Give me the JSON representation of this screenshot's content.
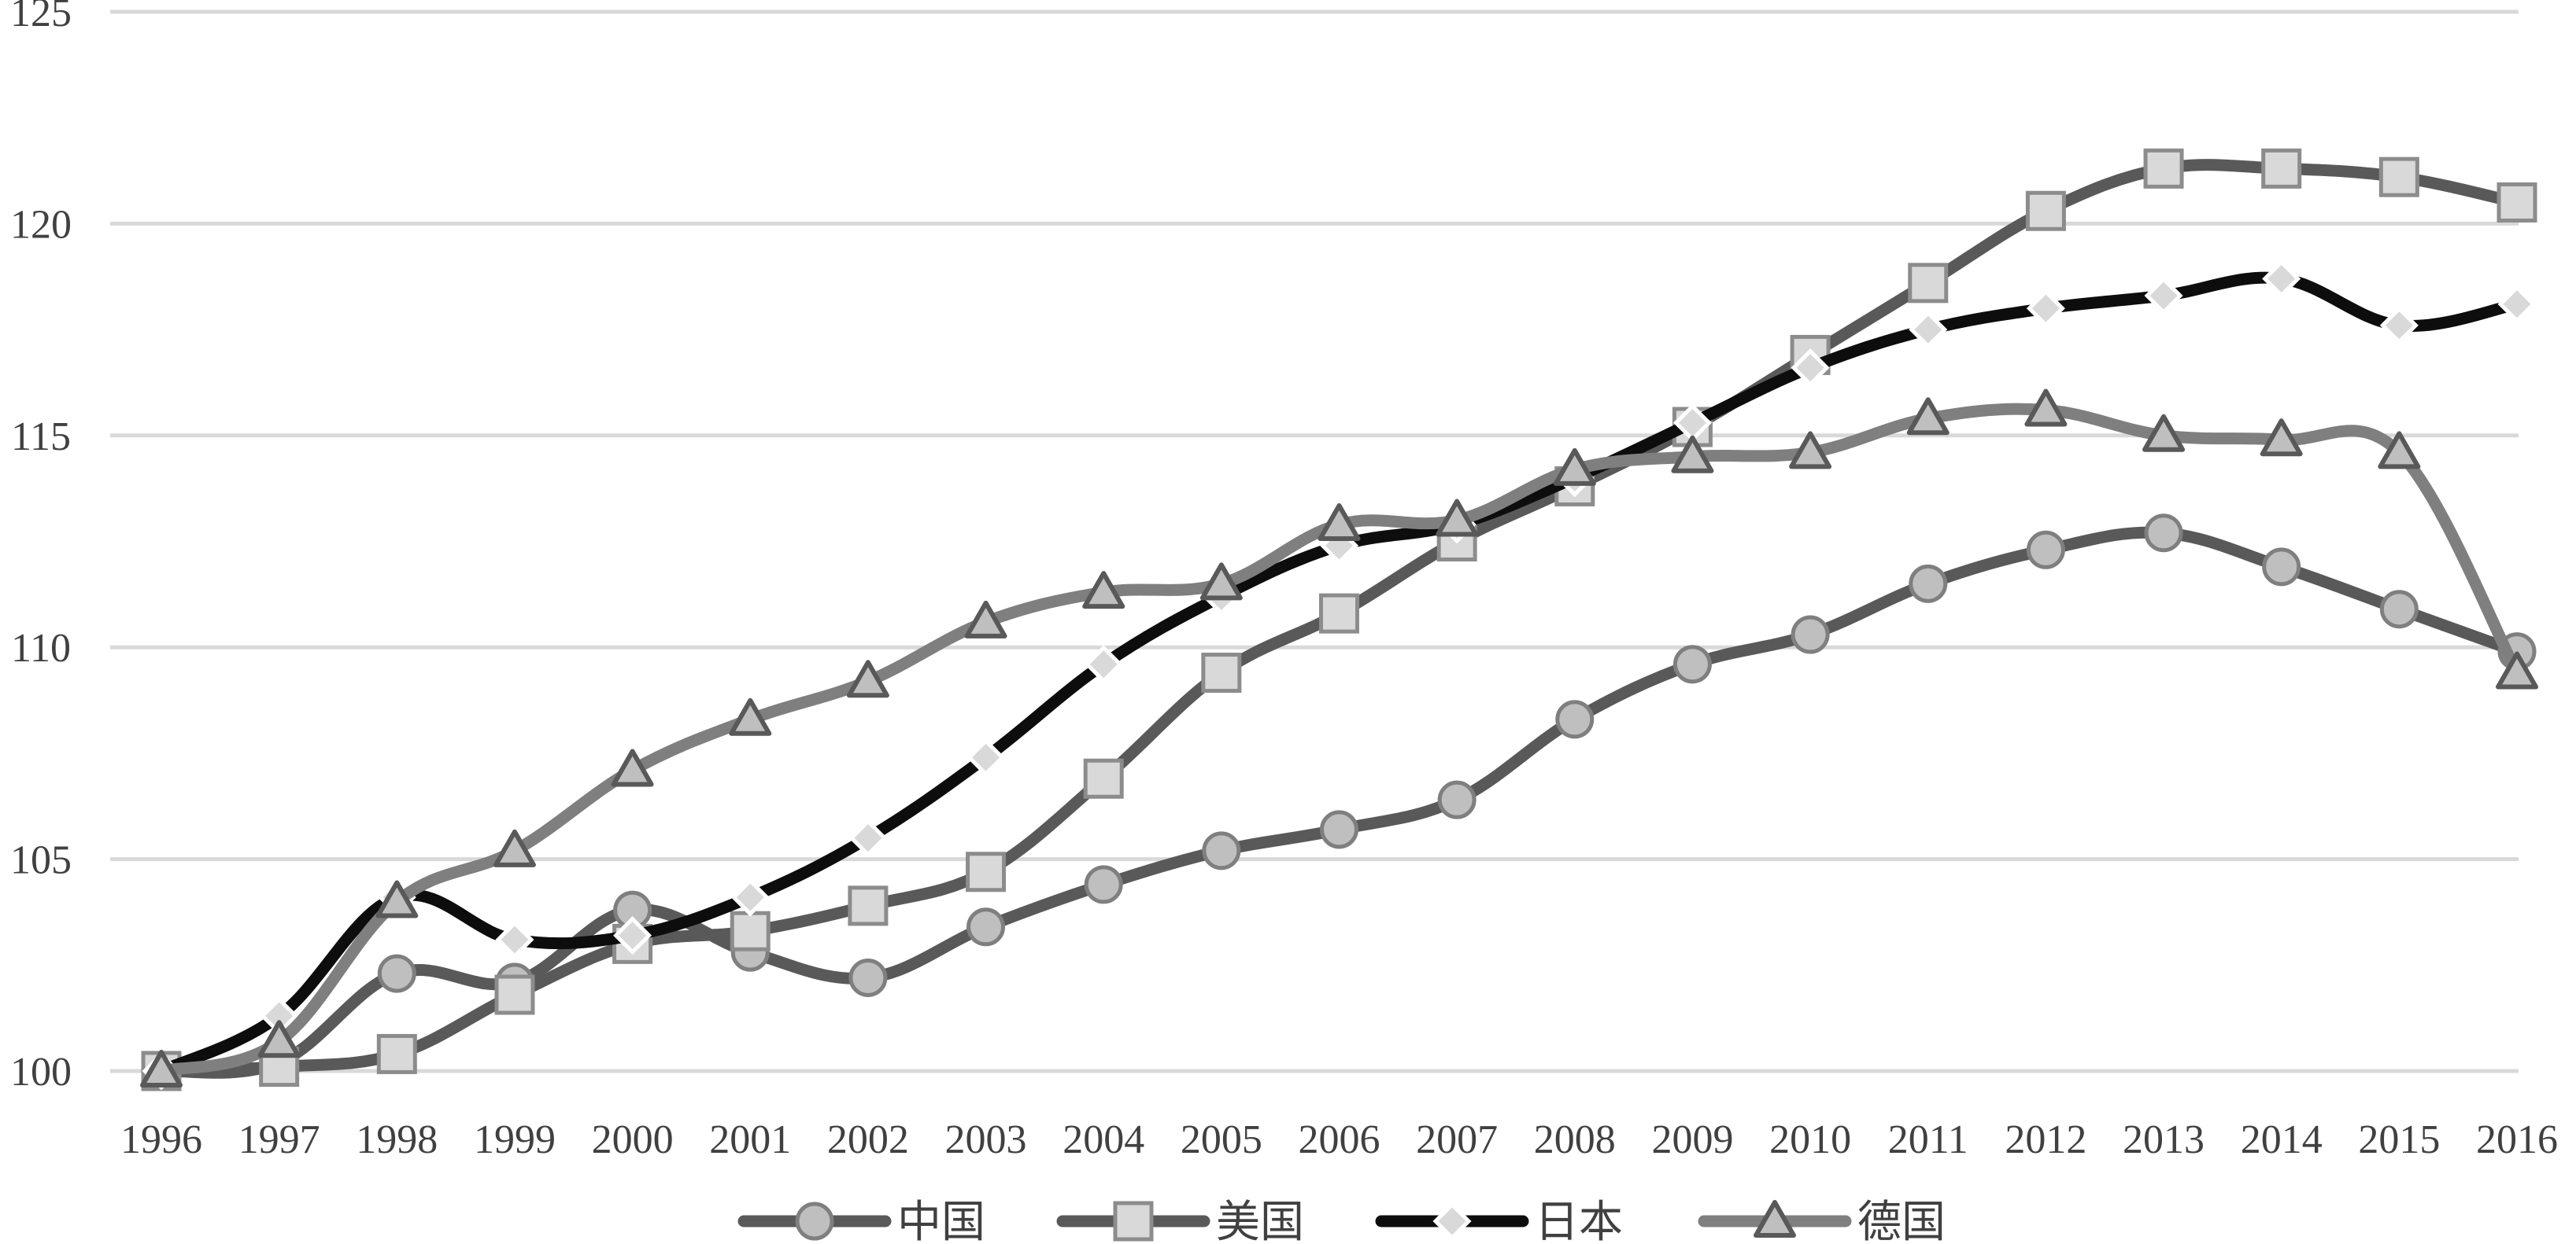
{
  "chart_data": {
    "type": "line",
    "title": "",
    "xlabel": "",
    "ylabel": "",
    "ylim": [
      100,
      125
    ],
    "yticks": [
      100,
      105,
      110,
      115,
      120,
      125
    ],
    "grid": true,
    "legend_position": "bottom",
    "categories": [
      "1996",
      "1997",
      "1998",
      "1999",
      "2000",
      "2001",
      "2002",
      "2003",
      "2004",
      "2005",
      "2006",
      "2007",
      "2008",
      "2009",
      "2010",
      "2011",
      "2012",
      "2013",
      "2014",
      "2015",
      "2016"
    ],
    "series": [
      {
        "name": "中国",
        "marker": "circle",
        "line_color": "#595959",
        "marker_fill": "#bfbfbf",
        "marker_stroke": "#7f7f7f",
        "values": [
          100.0,
          100.2,
          102.3,
          102.1,
          103.8,
          102.8,
          102.2,
          103.4,
          104.4,
          105.2,
          105.7,
          106.4,
          108.3,
          109.6,
          110.3,
          111.5,
          112.3,
          112.7,
          111.9,
          110.9,
          109.9
        ]
      },
      {
        "name": "美国",
        "marker": "square",
        "line_color": "#595959",
        "marker_fill": "#d9d9d9",
        "marker_stroke": "#8c8c8c",
        "values": [
          100.0,
          100.1,
          100.4,
          101.8,
          103.0,
          103.3,
          103.9,
          104.7,
          106.9,
          109.4,
          110.8,
          112.5,
          113.8,
          115.2,
          116.9,
          118.6,
          120.3,
          121.3,
          121.3,
          121.1,
          120.5
        ]
      },
      {
        "name": "日本",
        "marker": "diamond",
        "line_color": "#0d0d0d",
        "marker_fill": "#d9d9d9",
        "marker_stroke": "#ffffff",
        "values": [
          100.0,
          101.3,
          104.1,
          103.1,
          103.2,
          104.1,
          105.5,
          107.4,
          109.6,
          111.2,
          112.4,
          112.9,
          114.0,
          115.3,
          116.6,
          117.5,
          118.0,
          118.3,
          118.7,
          117.6,
          118.1
        ]
      },
      {
        "name": "德国",
        "marker": "triangle",
        "line_color": "#7f7f7f",
        "marker_fill": "#bfbfbf",
        "marker_stroke": "#595959",
        "values": [
          100.0,
          100.7,
          104.0,
          105.2,
          107.1,
          108.3,
          109.2,
          110.6,
          111.3,
          111.5,
          112.9,
          113.0,
          114.2,
          114.5,
          114.6,
          115.4,
          115.6,
          115.0,
          114.9,
          114.6,
          109.4
        ]
      }
    ]
  }
}
